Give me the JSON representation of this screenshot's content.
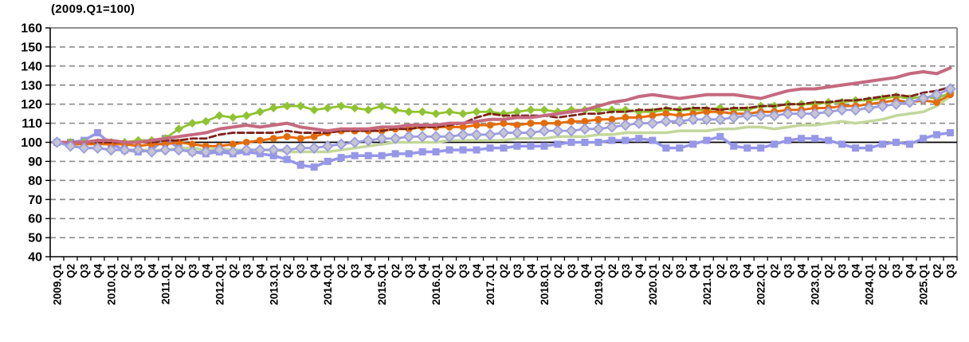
{
  "chart_data": {
    "type": "line",
    "title": "(2009.Q1=100)",
    "xlabel": "",
    "ylabel": "",
    "ylim": [
      40,
      160
    ],
    "y_ticks": [
      40,
      50,
      60,
      70,
      80,
      90,
      100,
      110,
      120,
      130,
      140,
      150,
      160
    ],
    "grid": "horizontal-dashed",
    "legend_position": "none",
    "reference_line": {
      "value": 100,
      "color": "#000000"
    },
    "style": {
      "grid_color": "#8C8C8C",
      "border_color": "#808080",
      "axis_color": "#000000",
      "background": "#FFFFFF"
    },
    "x_labels": [
      "2009.Q1",
      "Q2",
      "Q3",
      "Q4",
      "2010.Q1",
      "Q2",
      "Q3",
      "Q4",
      "2011.Q1",
      "Q2",
      "Q3",
      "Q4",
      "2012.Q1",
      "Q2",
      "Q3",
      "Q4",
      "2013.Q1",
      "Q2",
      "Q3",
      "Q4",
      "2014.Q1",
      "Q2",
      "Q3",
      "Q4",
      "2015.Q1",
      "Q2",
      "Q3",
      "Q4",
      "2016.Q1",
      "Q2",
      "Q3",
      "Q4",
      "2017.Q1",
      "Q2",
      "Q3",
      "Q4",
      "2018.Q1",
      "Q2",
      "Q3",
      "Q4",
      "2019.Q1",
      "Q2",
      "Q3",
      "Q4",
      "2020.Q1",
      "Q2",
      "Q3",
      "Q4",
      "2021.Q1",
      "Q2",
      "Q3",
      "Q4",
      "2022.Q1",
      "Q2",
      "Q3",
      "Q4",
      "2023.Q1",
      "Q2",
      "Q3",
      "Q4",
      "2024.Q1",
      "Q2",
      "Q3",
      "Q4",
      "2025.Q1",
      "Q2",
      "Q3"
    ],
    "series": [
      {
        "name": "periwinkle-squares",
        "color": "#9697E8",
        "width": 3.5,
        "marker": "square",
        "marker_size": 9,
        "marker_fill": "#9697E8",
        "dash": null,
        "values": [
          100,
          100,
          101,
          105,
          99,
          96,
          95,
          96,
          102,
          97,
          95,
          94,
          95,
          94,
          95,
          94,
          93,
          91,
          88,
          87,
          90,
          92,
          93,
          93,
          93,
          94,
          94,
          95,
          95,
          96,
          96,
          96,
          97,
          97,
          98,
          98,
          98,
          99,
          100,
          100,
          100,
          101,
          101,
          102,
          101,
          97,
          97,
          99,
          101,
          103,
          98,
          97,
          97,
          99,
          101,
          102,
          102,
          101,
          99,
          97,
          97,
          99,
          100,
          99,
          102,
          104,
          105
        ]
      },
      {
        "name": "green-diamonds",
        "color": "#8FC331",
        "width": 2.8,
        "marker": "diamond",
        "marker_size": 11,
        "marker_fill": "#8FC331",
        "dash": null,
        "values": [
          100,
          100,
          100,
          100,
          100,
          100,
          101,
          101,
          102,
          107,
          110,
          111,
          114,
          113,
          114,
          116,
          118,
          119,
          119,
          117,
          118,
          119,
          118,
          117,
          119,
          117,
          116,
          116,
          115,
          116,
          115,
          116,
          116,
          115,
          116,
          117,
          117,
          116,
          117,
          117,
          117,
          117,
          117,
          116,
          116,
          117,
          117,
          117,
          117,
          118,
          117,
          117,
          119,
          119,
          120,
          120,
          120,
          121,
          121,
          122,
          122,
          123,
          124,
          123,
          124,
          123,
          126
        ]
      },
      {
        "name": "pale-green-line",
        "color": "#C3D79B",
        "width": 3.5,
        "marker": "none",
        "marker_size": 0,
        "marker_fill": null,
        "dash": null,
        "values": [
          100,
          98,
          97,
          97,
          96,
          96,
          96,
          96,
          96,
          97,
          97,
          96,
          97,
          96,
          96,
          96,
          96,
          95,
          95,
          95,
          95,
          96,
          97,
          98,
          99,
          100,
          100,
          100,
          100,
          101,
          101,
          101,
          101,
          101,
          102,
          102,
          102,
          103,
          103,
          103,
          104,
          104,
          105,
          105,
          105,
          105,
          106,
          106,
          106,
          107,
          107,
          108,
          108,
          107,
          108,
          109,
          109,
          110,
          111,
          110,
          111,
          112,
          114,
          115,
          116,
          119,
          124
        ]
      },
      {
        "name": "orange-circles",
        "color": "#E36C0A",
        "width": 3,
        "marker": "circle",
        "marker_size": 9,
        "marker_fill": "#E36C0A",
        "dash": null,
        "values": [
          100,
          99,
          99,
          99,
          99,
          99,
          98,
          99,
          99,
          100,
          99,
          98,
          98,
          99,
          100,
          101,
          102,
          103,
          102,
          103,
          105,
          106,
          106,
          106,
          106,
          107,
          107,
          108,
          108,
          108,
          108,
          109,
          109,
          110,
          109,
          110,
          110,
          110,
          111,
          111,
          112,
          112,
          113,
          113,
          114,
          115,
          114,
          115,
          116,
          116,
          115,
          115,
          116,
          116,
          117,
          117,
          118,
          118,
          119,
          119,
          120,
          121,
          122,
          121,
          122,
          121,
          125
        ]
      },
      {
        "name": "dark-red-dashed",
        "color": "#7E2119",
        "width": 2.8,
        "marker": "none",
        "marker_size": 0,
        "marker_fill": null,
        "dash": "8 4",
        "values": [
          100,
          100,
          100,
          100,
          100,
          100,
          100,
          100,
          101,
          101,
          102,
          102,
          104,
          105,
          105,
          105,
          105,
          106,
          105,
          105,
          105,
          106,
          106,
          106,
          106,
          107,
          107,
          108,
          108,
          109,
          110,
          113,
          115,
          114,
          114,
          114,
          114,
          113,
          114,
          115,
          115,
          116,
          116,
          117,
          117,
          118,
          117,
          118,
          118,
          117,
          118,
          118,
          119,
          119,
          120,
          120,
          121,
          121,
          122,
          122,
          123,
          124,
          125,
          124,
          126,
          127,
          129
        ]
      },
      {
        "name": "rose-line",
        "color": "#C5697F",
        "width": 4,
        "marker": "none",
        "marker_size": 0,
        "marker_fill": null,
        "dash": null,
        "values": [
          100,
          100,
          100,
          101,
          101,
          100,
          100,
          101,
          102,
          103,
          104,
          105,
          107,
          108,
          109,
          108,
          109,
          110,
          108,
          107,
          106,
          107,
          107,
          107,
          108,
          108,
          109,
          109,
          109,
          110,
          110,
          111,
          112,
          112,
          113,
          113,
          114,
          115,
          116,
          117,
          119,
          121,
          122,
          124,
          125,
          124,
          123,
          124,
          125,
          125,
          125,
          124,
          123,
          125,
          127,
          128,
          128,
          129,
          130,
          131,
          132,
          133,
          134,
          136,
          137,
          136,
          139
        ]
      },
      {
        "name": "lavender-gray-diamonds",
        "color": "#9B9BE2",
        "width": 2.8,
        "marker": "diamond",
        "marker_size": 12,
        "marker_fill": "#C6C6D0",
        "marker_stroke": "#9B9BE2",
        "dash": null,
        "values": [
          100,
          98,
          97,
          97,
          96,
          96,
          96,
          95,
          96,
          96,
          95,
          95,
          96,
          95,
          96,
          96,
          96,
          96,
          97,
          97,
          98,
          99,
          100,
          101,
          102,
          102,
          103,
          103,
          103,
          103,
          104,
          104,
          104,
          105,
          105,
          105,
          106,
          106,
          106,
          107,
          107,
          108,
          109,
          110,
          110,
          111,
          111,
          112,
          112,
          112,
          113,
          114,
          114,
          114,
          115,
          115,
          115,
          116,
          117,
          117,
          118,
          119,
          120,
          121,
          123,
          125,
          128
        ]
      }
    ]
  }
}
